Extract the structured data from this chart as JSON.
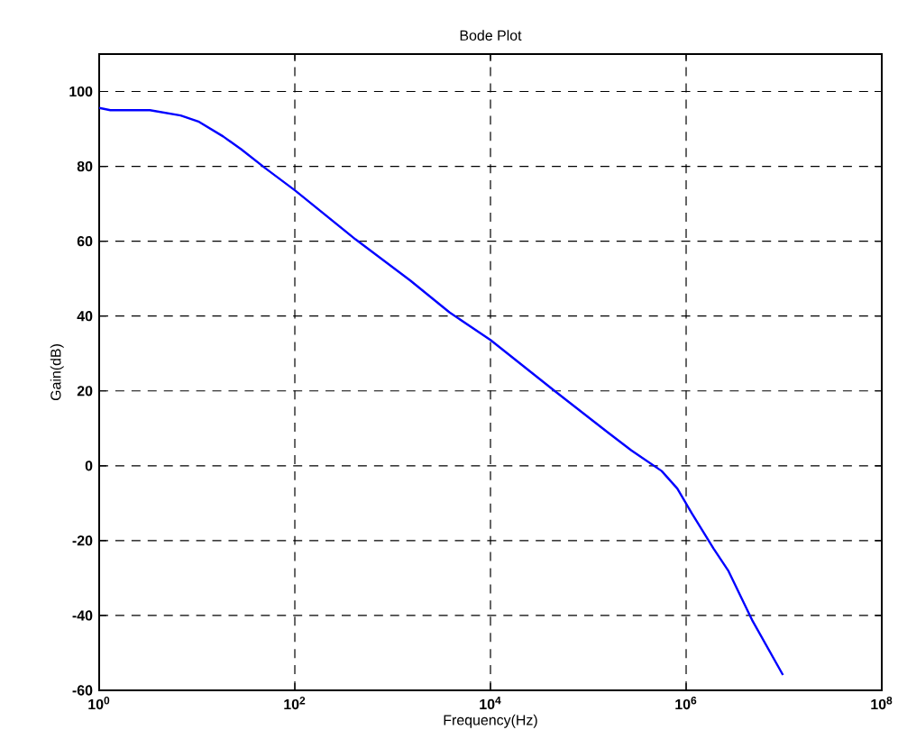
{
  "chart_data": {
    "type": "line",
    "title": "Bode Plot",
    "xlabel": "Frequency(Hz)",
    "ylabel": "Gain(dB)",
    "log": "x",
    "x": [
      1,
      1.3,
      3.3,
      6.8,
      10.5,
      18.5,
      28.2,
      49.9,
      100,
      417,
      1514,
      3802,
      10000,
      46774,
      154882,
      275423,
      562341,
      812831,
      1148154,
      1905461,
      2691535,
      4786301,
      9772372
    ],
    "series": [
      {
        "color": "#0000ff",
        "values": [
          95.6,
          95,
          95,
          93.6,
          91.9,
          88,
          84.6,
          79.5,
          73.6,
          60.5,
          49.5,
          41,
          33.6,
          19.7,
          9.1,
          4.1,
          -1.4,
          -6.1,
          -12.8,
          -22.1,
          -28,
          -41.5,
          -55.9
        ]
      }
    ],
    "xlim": [
      1,
      100000000
    ],
    "ylim": [
      -60,
      110
    ],
    "xticks": [
      {
        "value": 1,
        "label": "10$^{0}$"
      },
      {
        "value": 100,
        "label": "10$^{2}$"
      },
      {
        "value": 10000,
        "label": "10$^{4}$"
      },
      {
        "value": 1000000,
        "label": "10$^{6}$"
      },
      {
        "value": 100000000,
        "label": "10$^{8}$"
      }
    ],
    "yticks": [
      -60,
      -40,
      -20,
      0,
      20,
      40,
      60,
      80,
      100
    ],
    "grid": true,
    "marker": "none",
    "line_style": "solid"
  }
}
